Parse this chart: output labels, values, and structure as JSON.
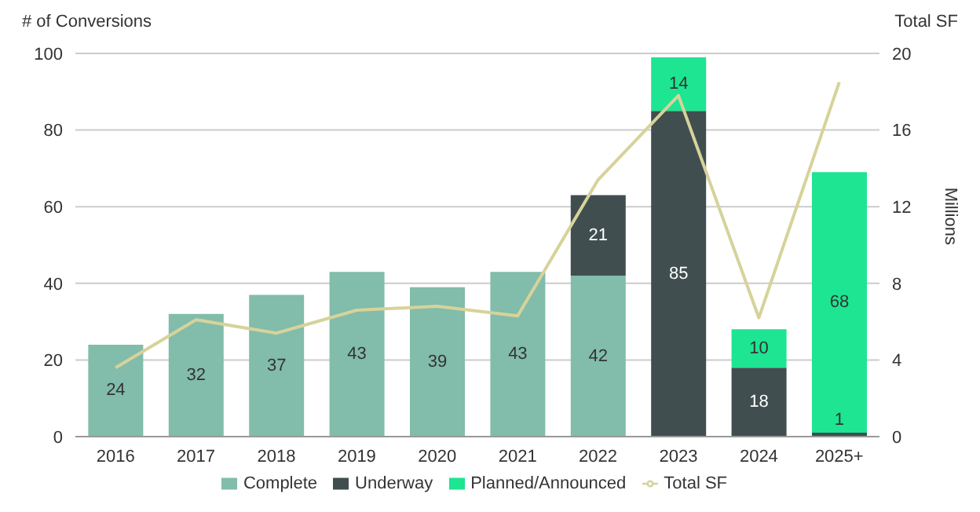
{
  "chart_data": {
    "type": "bar",
    "stacked": true,
    "ylabel": "# of Conversions",
    "y2label": "Millions",
    "annotations": [
      "Total SF"
    ],
    "categories": [
      "2016",
      "2017",
      "2018",
      "2019",
      "2020",
      "2021",
      "2022",
      "2023",
      "2024",
      "2025+"
    ],
    "series": [
      {
        "name": "Complete",
        "color": "#82bcaa",
        "values": [
          24,
          32,
          37,
          43,
          39,
          43,
          42,
          0,
          0,
          0
        ],
        "value_labels": [
          "24",
          "32",
          "37",
          "43",
          "39",
          "43",
          "42",
          null,
          null,
          null
        ]
      },
      {
        "name": "Underway",
        "color": "#414e50",
        "values": [
          0,
          0,
          0,
          0,
          0,
          0,
          21,
          85,
          18,
          1
        ],
        "value_labels": [
          null,
          null,
          null,
          null,
          null,
          null,
          "21",
          "85",
          "18",
          "1"
        ]
      },
      {
        "name": "Planned/Announced",
        "color": "#1de592",
        "values": [
          0,
          0,
          0,
          0,
          0,
          0,
          0,
          14,
          10,
          68
        ],
        "value_labels": [
          null,
          null,
          null,
          null,
          null,
          null,
          null,
          "14",
          "10",
          "68"
        ]
      },
      {
        "name": "Total SF",
        "type": "line",
        "axis": "y2",
        "color": "#d6d39a",
        "values": [
          3.6,
          6.1,
          5.4,
          6.6,
          6.8,
          6.3,
          13.4,
          17.8,
          6.2,
          18.5
        ]
      }
    ],
    "ylim": [
      0,
      100
    ],
    "yticks": [
      0,
      20,
      40,
      60,
      80,
      100
    ],
    "y2lim": [
      0,
      20
    ],
    "y2ticks": [
      0,
      4,
      8,
      12,
      16,
      20
    ],
    "grid": "y",
    "legend": "bottom",
    "marker": "none"
  }
}
